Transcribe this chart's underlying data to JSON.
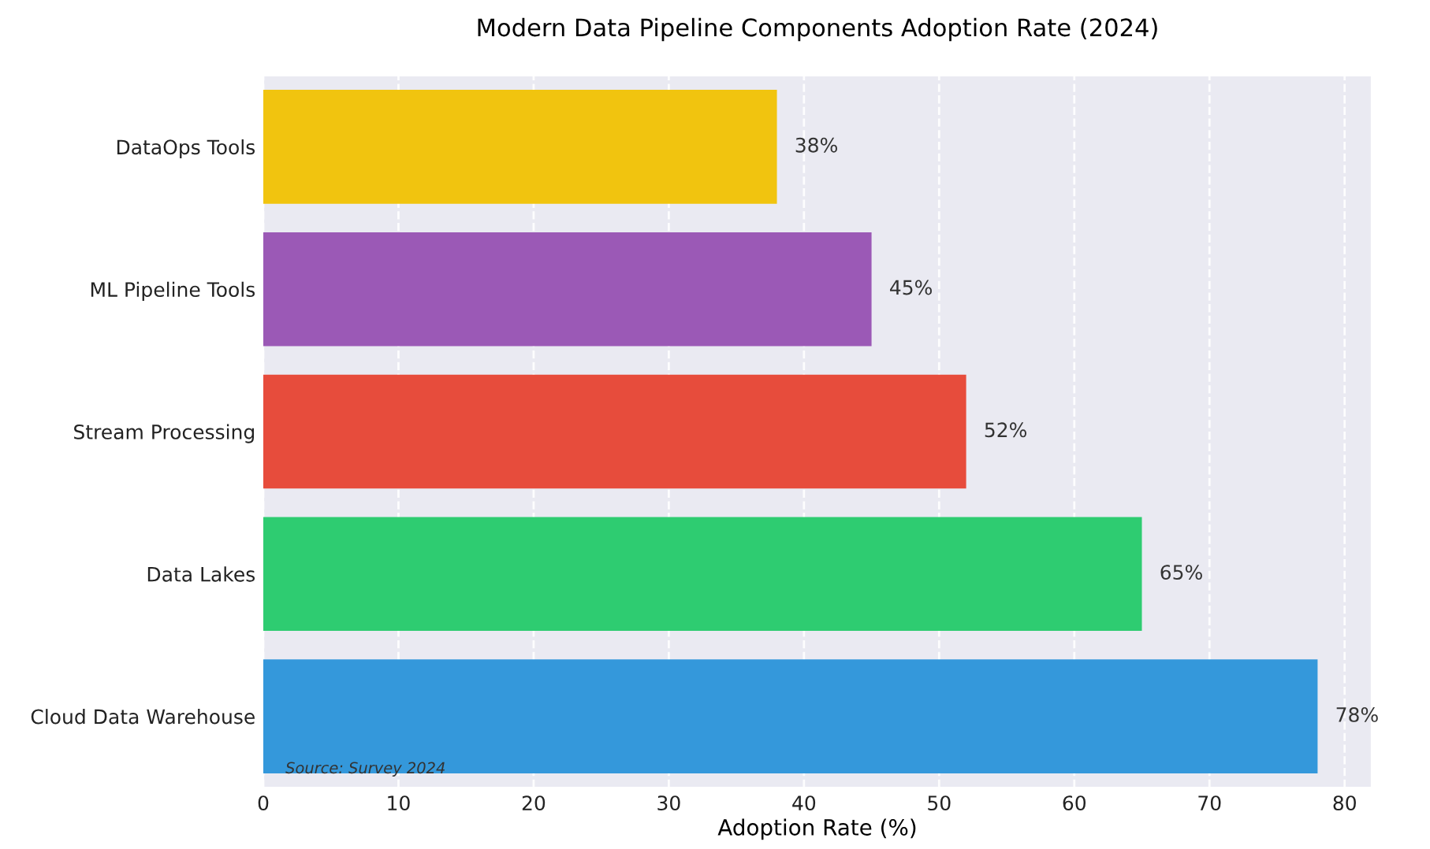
{
  "chart_data": {
    "type": "bar",
    "orientation": "horizontal",
    "title": "Modern Data Pipeline Components Adoption Rate (2024)",
    "xlabel": "Adoption Rate (%)",
    "categories": [
      "DataOps Tools",
      "ML Pipeline Tools",
      "Stream Processing",
      "Data Lakes",
      "Cloud Data Warehouse"
    ],
    "values": [
      38,
      45,
      52,
      65,
      78
    ],
    "colors": [
      "#f1c40f",
      "#9b59b6",
      "#e74c3c",
      "#2ecc71",
      "#3498db"
    ],
    "value_labels": [
      "38%",
      "45%",
      "52%",
      "65%",
      "78%"
    ],
    "xlim": [
      0,
      82
    ],
    "xticks": [
      0,
      10,
      20,
      30,
      40,
      50,
      60,
      70,
      80
    ],
    "grid": "x",
    "annotations": [
      "Source: Survey 2024"
    ]
  }
}
